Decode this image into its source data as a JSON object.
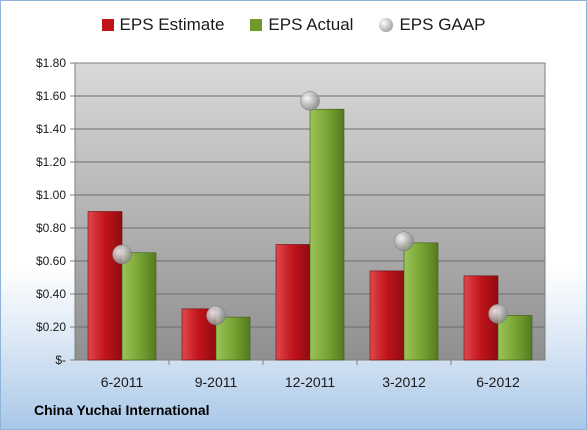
{
  "company_label": "China Yuchai International",
  "chart_data": {
    "type": "bar",
    "categories": [
      "6-2011",
      "9-2011",
      "12-2011",
      "3-2012",
      "6-2012"
    ],
    "series": [
      {
        "name": "EPS Estimate",
        "kind": "bar",
        "color": "#c0141b",
        "values": [
          0.9,
          0.31,
          0.7,
          0.54,
          0.51
        ]
      },
      {
        "name": "EPS Actual",
        "kind": "bar",
        "color": "#6f9a2a",
        "values": [
          0.65,
          0.26,
          1.52,
          0.71,
          0.27
        ]
      },
      {
        "name": "EPS GAAP",
        "kind": "marker",
        "color": "#b8b8b8",
        "values": [
          0.64,
          0.27,
          1.57,
          0.72,
          0.28
        ]
      }
    ],
    "ylim": [
      0,
      1.8
    ],
    "yticks": [
      0,
      0.2,
      0.4,
      0.6,
      0.8,
      1.0,
      1.2,
      1.4,
      1.6,
      1.8
    ],
    "ytick_labels": [
      "$-",
      "$0.20",
      "$0.40",
      "$0.60",
      "$0.80",
      "$1.00",
      "$1.20",
      "$1.40",
      "$1.60",
      "$1.80"
    ],
    "grid": true,
    "legend_position": "top"
  }
}
